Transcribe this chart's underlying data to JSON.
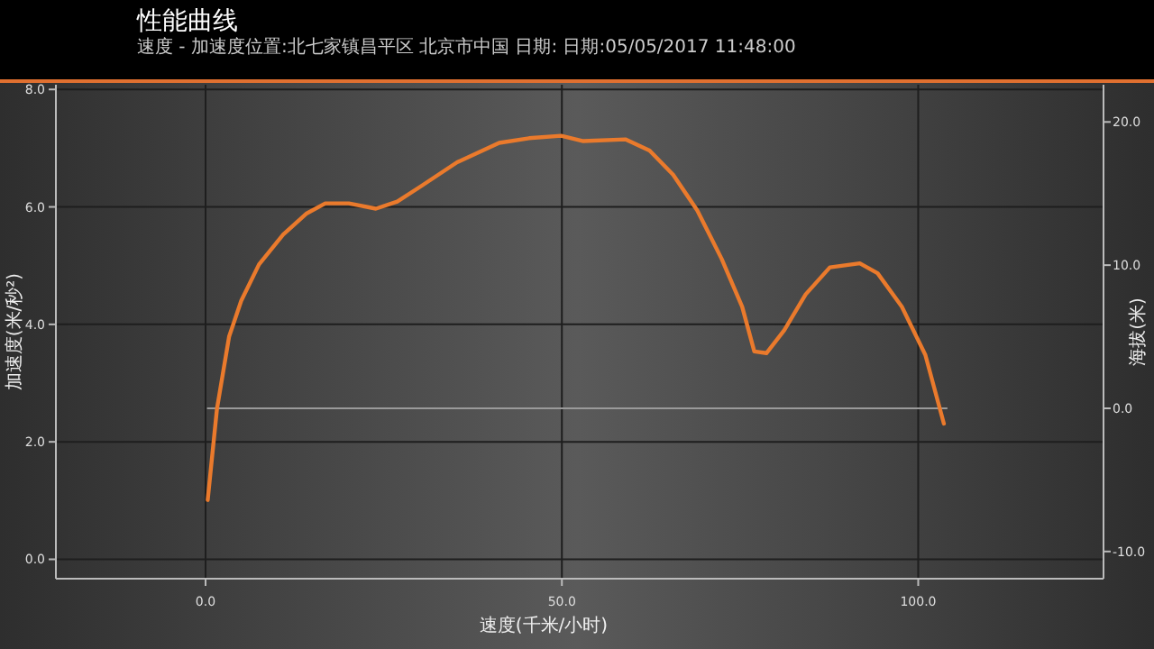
{
  "chart_data": {
    "type": "line",
    "title": "性能曲线",
    "subtitle": "速度 - 加速度位置:北七家镇昌平区 北京市中国 日期: 日期:05/05/2017 11:48:00",
    "xlabel": "速度(千米/小时)",
    "ylabel": "加速度(米/秒²)",
    "y2label": "海拔(米)",
    "series": [
      {
        "color": "#ea7a2c",
        "x": [
          0.3,
          1.6,
          3.3,
          5.0,
          7.5,
          10.9,
          14.2,
          16.8,
          20.1,
          23.9,
          26.9,
          30.2,
          35.3,
          41.2,
          45.4,
          49.9,
          53,
          58.9,
          62.3,
          65.6,
          69,
          72.4,
          75.3,
          77,
          78.7,
          81.2,
          84.2,
          87.6,
          91.8,
          94.3,
          97.7,
          101,
          103.6
        ],
        "values": [
          1.01,
          2.56,
          3.79,
          4.4,
          5.02,
          5.53,
          5.89,
          6.06,
          6.06,
          5.97,
          6.09,
          6.35,
          6.76,
          7.09,
          7.17,
          7.21,
          7.12,
          7.15,
          6.96,
          6.55,
          5.94,
          5.12,
          4.3,
          3.54,
          3.51,
          3.9,
          4.51,
          4.97,
          5.04,
          4.87,
          4.3,
          3.48,
          2.31
        ]
      },
      {
        "color": "#9a9a9a",
        "axis": "y2",
        "x": [
          0.3,
          104
        ],
        "values": [
          0,
          0
        ]
      }
    ],
    "xlim": [
      -21,
      126
    ],
    "ylim": [
      -0.33,
      8.08
    ],
    "y2lim": [
      -11.9,
      22.6
    ],
    "xticks": [
      {
        "value": 0,
        "label": "0.0"
      },
      {
        "value": 50,
        "label": "50.0"
      },
      {
        "value": 100,
        "label": "100.0"
      }
    ],
    "yticks": [
      {
        "value": 0,
        "label": "0.0"
      },
      {
        "value": 2,
        "label": "2.0"
      },
      {
        "value": 4,
        "label": "4.0"
      },
      {
        "value": 6,
        "label": "6.0"
      },
      {
        "value": 8,
        "label": "8.0"
      }
    ],
    "y2ticks": [
      {
        "value": -10,
        "label": "-10.0"
      },
      {
        "value": 0,
        "label": "0.0"
      },
      {
        "value": 10,
        "label": "10.0"
      },
      {
        "value": 20,
        "label": "20.0"
      }
    ],
    "grid": true,
    "line_style": "solid"
  }
}
